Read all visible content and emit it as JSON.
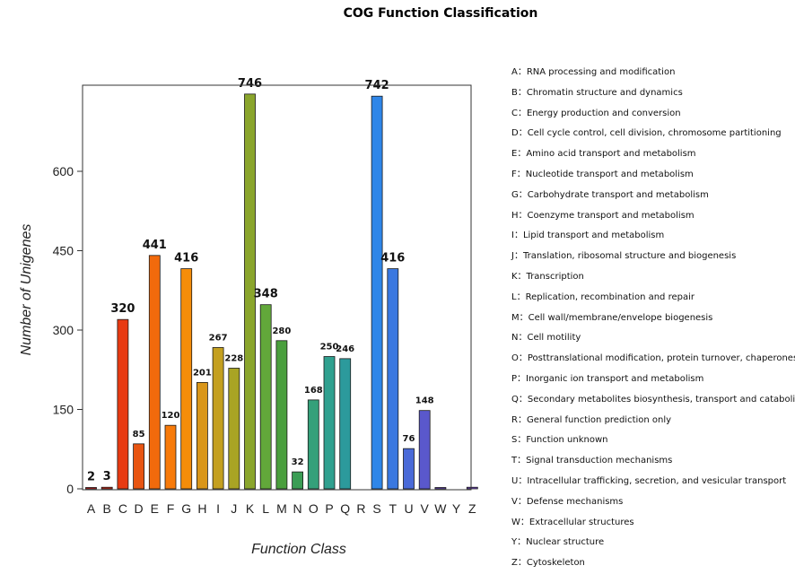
{
  "chart_data": {
    "type": "bar",
    "title": "COG Function Classification",
    "xlabel": "Function Class",
    "ylabel": "Number of Unigenes",
    "ylim": [
      0,
      760
    ],
    "yticks": [
      0,
      150,
      300,
      450,
      600
    ],
    "categories": [
      "A",
      "B",
      "C",
      "D",
      "E",
      "F",
      "G",
      "H",
      "I",
      "J",
      "K",
      "L",
      "M",
      "N",
      "O",
      "P",
      "Q",
      "R",
      "S",
      "T",
      "U",
      "V",
      "W",
      "Y",
      "Z"
    ],
    "values": [
      2,
      3,
      320,
      85,
      441,
      120,
      416,
      201,
      267,
      228,
      746,
      348,
      280,
      32,
      168,
      250,
      246,
      0,
      742,
      416,
      76,
      148,
      1,
      0,
      3
    ],
    "data_labels": [
      "2",
      "3",
      "320",
      "85",
      "441",
      "120",
      "416",
      "201",
      "267",
      "228",
      "746",
      "348",
      "280",
      "32",
      "168",
      "250",
      "246",
      "",
      "742",
      "416",
      "76",
      "148",
      "",
      "",
      ""
    ],
    "colors": [
      "#d61f1f",
      "#d82a17",
      "#e83a12",
      "#e85512",
      "#f26a0c",
      "#f77a0a",
      "#f58d0a",
      "#d9961a",
      "#c4a020",
      "#a9a424",
      "#8aa52c",
      "#62a83a",
      "#4a9f3d",
      "#3b9d55",
      "#35a07a",
      "#30a08f",
      "#2c9a9c",
      "#2c94a8",
      "#2f86e8",
      "#3a78e0",
      "#4a6ad8",
      "#5a58cc",
      "#6a48c0",
      "#7a3cb6",
      "#6a44b8"
    ],
    "legend": [
      "A：RNA processing and modification",
      "B：Chromatin structure and dynamics",
      "C：Energy production and conversion",
      "D：Cell cycle control, cell division, chromosome partitioning",
      "E：Amino acid transport and metabolism",
      "F：Nucleotide transport and metabolism",
      "G：Carbohydrate transport and metabolism",
      "H：Coenzyme transport and metabolism",
      "I：Lipid transport and metabolism",
      "J：Translation, ribosomal structure and biogenesis",
      "K：Transcription",
      "L：Replication, recombination and repair",
      "M：Cell wall/membrane/envelope biogenesis",
      "N：Cell motility",
      "O：Posttranslational modification, protein turnover, chaperones",
      "P：Inorganic ion transport and metabolism",
      "Q：Secondary metabolites biosynthesis, transport and catabolism",
      "R：General function prediction only",
      "S：Function unknown",
      "T：Signal transduction mechanisms",
      "U：Intracellular trafficking, secretion, and vesicular transport",
      "V：Defense mechanisms",
      "W：Extracellular structures",
      "Y：Nuclear structure",
      "Z：Cytoskeleton"
    ],
    "legend_position": "right",
    "grid": false
  }
}
